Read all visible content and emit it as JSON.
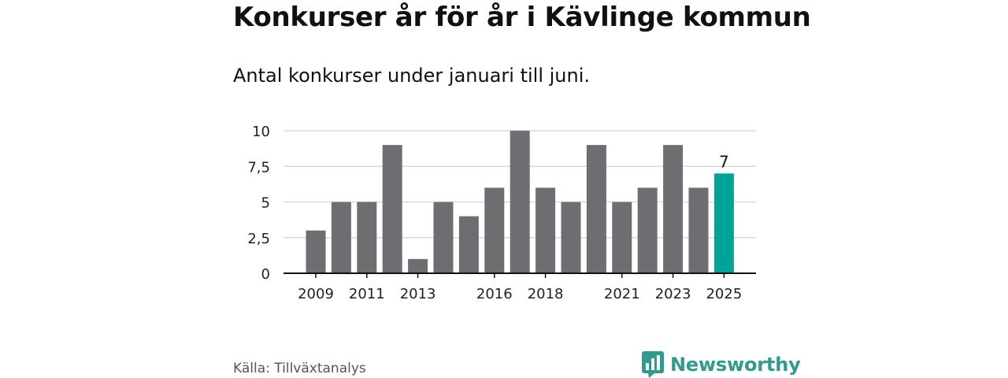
{
  "title": "Konkurser år för år i Kävlinge kommun",
  "subtitle": "Antal konkurser under januari till juni.",
  "source": "Källa: Tillväxtanalys",
  "brand": {
    "name": "Newsworthy",
    "icon": "bar-chart-logo-icon"
  },
  "colors": {
    "bar": "#6e6d72",
    "highlight": "#00a39a",
    "brand": "#2f9c8e",
    "grid": "#d9d9d9",
    "axis": "#111111"
  },
  "chart_data": {
    "type": "bar",
    "categories": [
      "2009",
      "2010",
      "2011",
      "2012",
      "2013",
      "2014",
      "2015",
      "2016",
      "2017",
      "2018",
      "2019",
      "2020",
      "2021",
      "2022",
      "2023",
      "2024",
      "2025"
    ],
    "values": [
      3,
      5,
      5,
      9,
      1,
      5,
      4,
      6,
      10,
      6,
      5,
      9,
      5,
      6,
      9,
      6,
      7
    ],
    "xticks": [
      "2009",
      "2011",
      "2013",
      "2016",
      "2018",
      "2021",
      "2023",
      "2025"
    ],
    "yticks": [
      0,
      2.5,
      5,
      7.5,
      10
    ],
    "ytick_labels": [
      "0",
      "2,5",
      "5",
      "7,5",
      "10"
    ],
    "ylim": [
      0,
      10
    ],
    "highlight": {
      "category": "2025",
      "label": "7"
    },
    "grid": true,
    "xlabel": "",
    "ylabel": ""
  }
}
